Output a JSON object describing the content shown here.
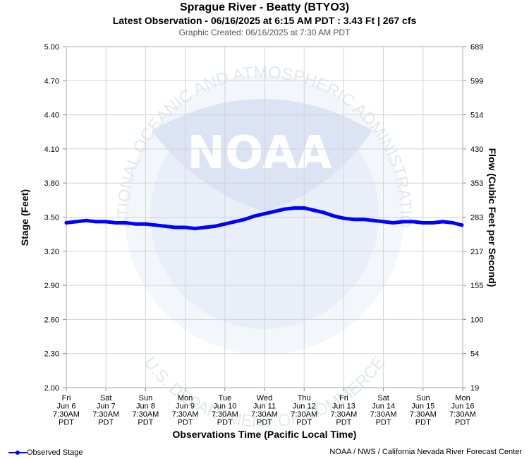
{
  "header": {
    "title": "Sprague River - Beatty (BTYO3)",
    "subtitle": "Latest Observation - 06/16/2025 at 6:15 AM PDT : 3.43 Ft | 267 cfs",
    "created": "Graphic Created: 06/16/2025 at 7:30 AM PDT"
  },
  "watermark": {
    "logo_text": "NOAA",
    "ring_text_top": "NATIONAL OCEANIC AND ATMOSPHERIC ADMINISTRATION",
    "ring_text_bottom": "U.S. DEPARTMENT OF COMMERCE"
  },
  "legend": {
    "label": "Observed Stage"
  },
  "credit": "NOAA / NWS / California Nevada River Forecast Center",
  "colors": {
    "series": "#0000ff",
    "grid": "#d3d3d3",
    "watermark": "#e8eef8"
  },
  "chart_data": {
    "type": "line",
    "xlabel": "Observations Time (Pacific Local Time)",
    "ylabel": "Stage (Feet)",
    "y2label": "Flow (Cubic Feet per Second)",
    "ylim": [
      2.0,
      5.0
    ],
    "yticks": [
      "5.00",
      "4.70",
      "4.40",
      "4.10",
      "3.80",
      "3.50",
      "3.20",
      "2.90",
      "2.60",
      "2.30",
      "2.00"
    ],
    "y2ticks": [
      "689",
      "599",
      "514",
      "430",
      "353",
      "283",
      "217",
      "155",
      "100",
      "54",
      "19"
    ],
    "xlim": [
      0,
      10
    ],
    "xticks": [
      [
        "Fri",
        "Jun 6",
        "7:30AM",
        "PDT"
      ],
      [
        "Sat",
        "Jun 7",
        "7:30AM",
        "PDT"
      ],
      [
        "Sun",
        "Jun 8",
        "7:30AM",
        "PDT"
      ],
      [
        "Mon",
        "Jun 9",
        "7:30AM",
        "PDT"
      ],
      [
        "Tue",
        "Jun 10",
        "7:30AM",
        "PDT"
      ],
      [
        "Wed",
        "Jun 11",
        "7:30AM",
        "PDT"
      ],
      [
        "Thu",
        "Jun 12",
        "7:30AM",
        "PDT"
      ],
      [
        "Fri",
        "Jun 13",
        "7:30AM",
        "PDT"
      ],
      [
        "Sat",
        "Jun 14",
        "7:30AM",
        "PDT"
      ],
      [
        "Sun",
        "Jun 15",
        "7:30AM",
        "PDT"
      ],
      [
        "Mon",
        "Jun 16",
        "7:30AM",
        "PDT"
      ]
    ],
    "grid": true,
    "legend_position": "bottom-left",
    "series": [
      {
        "name": "Observed Stage",
        "x": [
          0.0,
          0.25,
          0.5,
          0.75,
          1.0,
          1.25,
          1.5,
          1.75,
          2.0,
          2.25,
          2.5,
          2.75,
          3.0,
          3.25,
          3.5,
          3.75,
          4.0,
          4.25,
          4.5,
          4.75,
          5.0,
          5.25,
          5.5,
          5.75,
          6.0,
          6.25,
          6.5,
          6.75,
          7.0,
          7.25,
          7.5,
          7.75,
          8.0,
          8.25,
          8.5,
          8.75,
          9.0,
          9.25,
          9.5,
          9.75,
          9.98
        ],
        "y": [
          3.45,
          3.46,
          3.47,
          3.46,
          3.46,
          3.45,
          3.45,
          3.44,
          3.44,
          3.43,
          3.42,
          3.41,
          3.41,
          3.4,
          3.41,
          3.42,
          3.44,
          3.46,
          3.48,
          3.51,
          3.53,
          3.55,
          3.57,
          3.58,
          3.58,
          3.56,
          3.54,
          3.51,
          3.49,
          3.48,
          3.48,
          3.47,
          3.46,
          3.45,
          3.46,
          3.46,
          3.45,
          3.45,
          3.46,
          3.45,
          3.43
        ]
      }
    ]
  }
}
